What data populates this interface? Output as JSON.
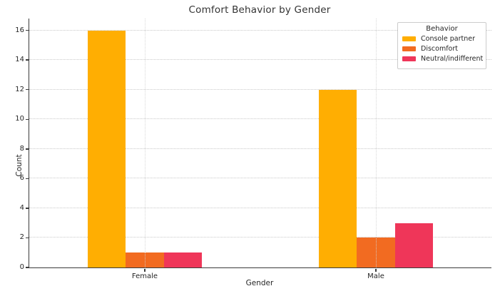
{
  "chart_data": {
    "type": "bar",
    "title": "Comfort Behavior by Gender",
    "xlabel": "Gender",
    "ylabel": "Count",
    "legend_title": "Behavior",
    "legend_position": "upper right",
    "grid": "dotted",
    "categories": [
      "Female",
      "Male"
    ],
    "series": [
      {
        "name": "Console partner",
        "color": "#FFAE02",
        "values": [
          16,
          12
        ]
      },
      {
        "name": "Discomfort",
        "color": "#F26B21",
        "values": [
          1,
          2
        ]
      },
      {
        "name": "Neutral/indifferent",
        "color": "#EF3659",
        "values": [
          1,
          3
        ]
      }
    ],
    "yticks": [
      0,
      2,
      4,
      6,
      8,
      10,
      12,
      14,
      16
    ],
    "ylim": [
      0,
      16.8
    ]
  }
}
